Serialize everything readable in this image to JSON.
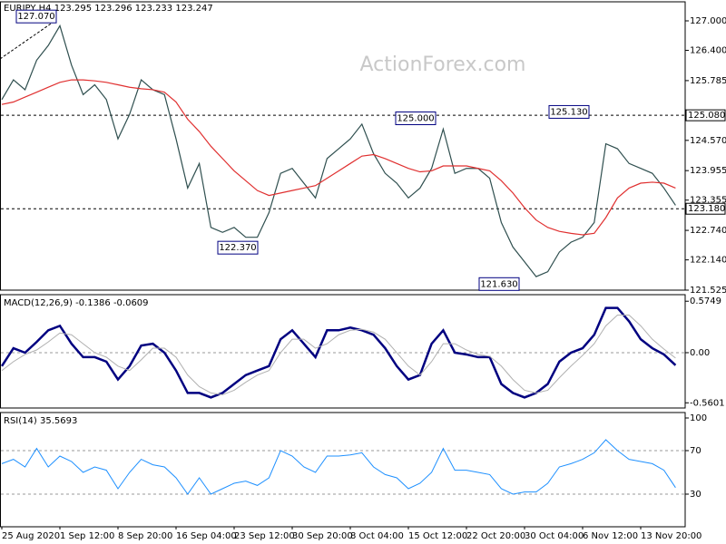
{
  "header": {
    "symbol": "EURJPY,H4",
    "ohlc": [
      123.295,
      123.296,
      123.233,
      123.247
    ]
  },
  "watermark": "ActionForex.com",
  "chart_data": [
    {
      "type": "line",
      "ylim": [
        121.525,
        127.387
      ],
      "yticks": [
        121.525,
        {
          "value": 122.14,
          "label": "122.140"
        },
        {
          "value": 122.74,
          "label": "122.740"
        },
        123.355,
        123.955,
        {
          "value": 124.57,
          "label": "124.570"
        },
        125.785,
        {
          "value": 126.4,
          "label": "126.400"
        },
        {
          "value": 127,
          "label": "127.000"
        }
      ],
      "levels": [
        {
          "value": 125.08,
          "label": "125.080"
        },
        {
          "value": 123.18,
          "label": "123.180"
        }
      ],
      "annotations": [
        {
          "value": 127.07,
          "label": "127.070"
        },
        {
          "value": 122.37,
          "label": "122.370"
        },
        {
          "value": 125.0,
          "label": "125.000"
        },
        {
          "value": 125.13,
          "label": "125.130"
        },
        {
          "value": 121.63,
          "label": "121.630"
        }
      ],
      "grid": false,
      "series": [
        {
          "color": "#2f4f4f",
          "values": [
            125.4,
            125.8,
            125.6,
            126.2,
            126.5,
            126.9,
            126.1,
            125.5,
            125.7,
            125.4,
            124.6,
            125.1,
            125.8,
            125.6,
            125.5,
            124.6,
            123.6,
            124.1,
            122.8,
            122.7,
            122.8,
            122.6,
            122.6,
            123.1,
            123.9,
            124.0,
            123.7,
            123.4,
            124.2,
            124.4,
            124.6,
            124.9,
            124.3,
            123.9,
            123.7,
            123.4,
            123.6,
            124.0,
            124.8,
            123.9,
            124.0,
            124.0,
            123.8,
            122.9,
            122.4,
            122.1,
            121.8,
            121.9,
            122.3,
            122.5,
            122.6,
            122.9,
            124.5,
            124.4,
            124.1,
            124.0,
            123.9,
            123.6,
            123.25
          ]
        },
        {
          "color": "#e03030",
          "values": [
            125.3,
            125.35,
            125.45,
            125.55,
            125.65,
            125.75,
            125.8,
            125.8,
            125.78,
            125.75,
            125.7,
            125.65,
            125.62,
            125.6,
            125.55,
            125.35,
            125.0,
            124.75,
            124.45,
            124.2,
            123.95,
            123.75,
            123.55,
            123.45,
            123.5,
            123.55,
            123.6,
            123.65,
            123.8,
            123.95,
            124.1,
            124.25,
            124.28,
            124.2,
            124.1,
            124.0,
            123.93,
            123.95,
            124.05,
            124.05,
            124.05,
            124.0,
            123.95,
            123.75,
            123.5,
            123.2,
            122.95,
            122.8,
            122.72,
            122.68,
            122.65,
            122.68,
            123.0,
            123.4,
            123.6,
            123.7,
            123.72,
            123.7,
            123.6
          ]
        }
      ]
    },
    {
      "type": "line",
      "title": "MACD(12,26,9)",
      "readout": [
        -0.1386,
        -0.0609
      ],
      "ylim": [
        -0.618,
        0.648
      ],
      "yticks": [
        0.5749,
        {
          "value": 0,
          "label": "0.00"
        },
        -0.5601
      ],
      "levels": [
        0
      ],
      "series": [
        {
          "color": "#000080",
          "values": [
            -0.15,
            0.05,
            0.0,
            0.12,
            0.25,
            0.3,
            0.1,
            -0.05,
            -0.05,
            -0.1,
            -0.3,
            -0.15,
            0.08,
            0.1,
            0.0,
            -0.2,
            -0.45,
            -0.45,
            -0.5,
            -0.45,
            -0.35,
            -0.25,
            -0.2,
            -0.15,
            0.15,
            0.25,
            0.1,
            -0.05,
            0.25,
            0.25,
            0.28,
            0.25,
            0.2,
            0.05,
            -0.15,
            -0.3,
            -0.25,
            0.1,
            0.25,
            0.0,
            -0.02,
            -0.05,
            -0.05,
            -0.35,
            -0.45,
            -0.5,
            -0.45,
            -0.35,
            -0.1,
            0.0,
            0.05,
            0.2,
            0.5,
            0.5,
            0.35,
            0.15,
            0.05,
            -0.02,
            -0.14
          ]
        },
        {
          "color": "#b0b0b0",
          "values": [
            -0.2,
            -0.1,
            -0.02,
            0.03,
            0.12,
            0.22,
            0.2,
            0.1,
            0.0,
            -0.05,
            -0.15,
            -0.2,
            -0.08,
            0.05,
            0.05,
            -0.05,
            -0.25,
            -0.38,
            -0.45,
            -0.47,
            -0.42,
            -0.33,
            -0.25,
            -0.2,
            0.0,
            0.15,
            0.15,
            0.05,
            0.1,
            0.2,
            0.25,
            0.26,
            0.23,
            0.15,
            0.0,
            -0.15,
            -0.25,
            -0.1,
            0.1,
            0.1,
            0.03,
            -0.02,
            -0.04,
            -0.15,
            -0.3,
            -0.42,
            -0.45,
            -0.42,
            -0.28,
            -0.15,
            -0.03,
            0.1,
            0.3,
            0.42,
            0.42,
            0.3,
            0.15,
            0.04,
            -0.06
          ]
        }
      ]
    },
    {
      "type": "line",
      "title": "RSI(14)",
      "readout": [
        35.5693
      ],
      "ylim": [
        0,
        105
      ],
      "yticks": [
        100,
        70,
        30
      ],
      "levels": [
        70,
        30
      ],
      "categories": [
        "25 Aug 2020",
        null,
        null,
        null,
        null,
        "1 Sep 12:00",
        null,
        null,
        null,
        null,
        "8 Sep 20:00",
        null,
        null,
        null,
        null,
        "16 Sep 04:00",
        null,
        null,
        null,
        null,
        "23 Sep 12:00",
        null,
        null,
        null,
        null,
        "30 Sep 20:00",
        null,
        null,
        null,
        null,
        "8 Oct 04:00",
        null,
        null,
        null,
        null,
        "15 Oct 12:00",
        null,
        null,
        null,
        null,
        "22 Oct 20:00",
        null,
        null,
        null,
        null,
        "30 Oct 04:00",
        null,
        null,
        null,
        null,
        "6 Nov 12:00",
        null,
        null,
        null,
        null,
        "13 Nov 20:00",
        null,
        null,
        null
      ],
      "series": [
        {
          "color": "#1e90ff",
          "values": [
            58,
            62,
            55,
            72,
            55,
            65,
            60,
            50,
            55,
            52,
            35,
            50,
            62,
            57,
            55,
            45,
            30,
            45,
            30,
            35,
            40,
            42,
            38,
            45,
            70,
            65,
            55,
            50,
            65,
            65,
            66,
            68,
            55,
            48,
            45,
            35,
            40,
            50,
            72,
            52,
            52,
            50,
            48,
            35,
            30,
            32,
            32,
            40,
            55,
            58,
            62,
            68,
            80,
            70,
            62,
            60,
            58,
            52,
            36
          ]
        }
      ]
    }
  ]
}
